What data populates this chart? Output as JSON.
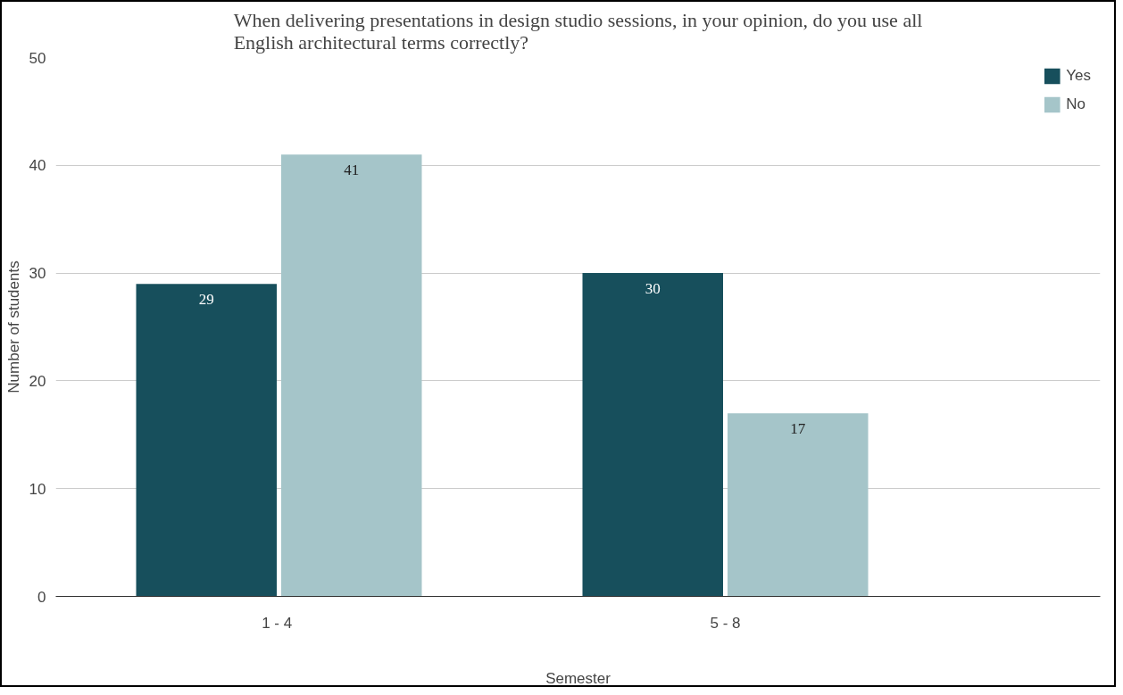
{
  "chart_data": {
    "type": "bar",
    "title": "When delivering presentations in design studio sessions, in your opinion, do you use all English architectural terms correctly?",
    "xlabel": "Semester",
    "ylabel": "Number of students",
    "categories": [
      "1 -  4",
      "5 - 8"
    ],
    "series": [
      {
        "name": "Yes",
        "color": "#174f5c",
        "values": [
          29,
          30
        ]
      },
      {
        "name": "No",
        "color": "#a5c5c9",
        "values": [
          41,
          17
        ]
      }
    ],
    "ylim": [
      0,
      50
    ],
    "yticks": [
      0,
      10,
      20,
      30,
      40,
      50
    ],
    "grid": "y",
    "legend": "top right",
    "data_labels": true
  }
}
